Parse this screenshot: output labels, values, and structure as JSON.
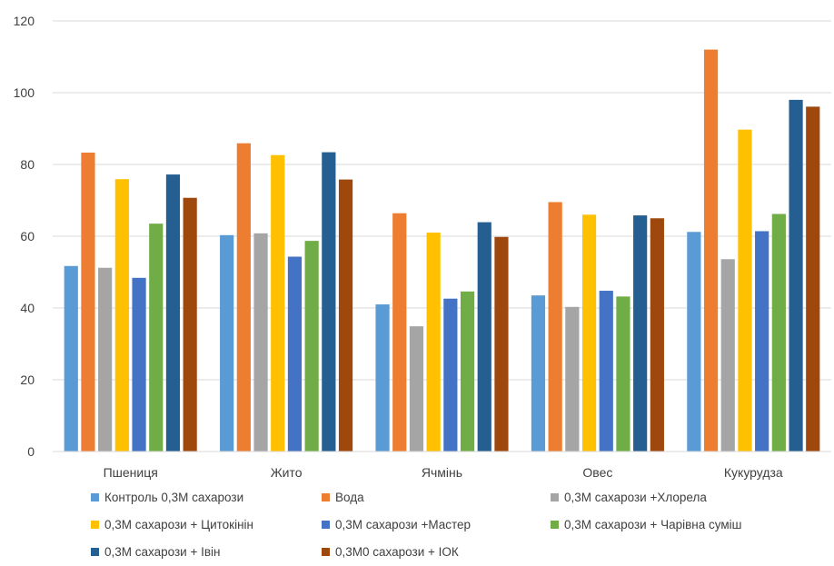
{
  "chart_data": {
    "type": "bar",
    "title": "",
    "xlabel": "",
    "ylabel": "",
    "ylim": [
      0,
      120
    ],
    "yticks": [
      0,
      20,
      40,
      60,
      80,
      100,
      120
    ],
    "grid": true,
    "legend_position": "bottom",
    "categories": [
      "Пшениця",
      "Жито",
      "Ячмінь",
      "Овес",
      "Кукурудза"
    ],
    "series": [
      {
        "name": "Контроль 0,3М сахарози",
        "color": "#5B9BD5",
        "values": [
          51.7,
          60.3,
          41.0,
          43.5,
          61.2
        ]
      },
      {
        "name": "Вода",
        "color": "#ED7D31",
        "values": [
          83.3,
          85.9,
          66.4,
          69.5,
          112.0
        ]
      },
      {
        "name": "0,3М сахарози +Хлорела",
        "color": "#A5A5A5",
        "values": [
          51.2,
          60.8,
          34.9,
          40.3,
          53.6
        ]
      },
      {
        "name": "0,3М сахарози + Цитокінін",
        "color": "#FFC000",
        "values": [
          75.9,
          82.6,
          61.0,
          66.0,
          89.7
        ]
      },
      {
        "name": "0,3М сахарози +Мастер",
        "color": "#4472C4",
        "values": [
          48.4,
          54.3,
          42.6,
          44.8,
          61.4
        ]
      },
      {
        "name": "0,3М сахарози + Чарівна суміш",
        "color": "#70AD47",
        "values": [
          63.5,
          58.7,
          44.6,
          43.2,
          66.2
        ]
      },
      {
        "name": "0,3М сахарози + Івін",
        "color": "#255E91",
        "values": [
          77.2,
          83.4,
          63.9,
          65.8,
          98.0
        ]
      },
      {
        "name": "0,3М0 сахарози + ІОК",
        "color": "#9E480E",
        "values": [
          70.7,
          75.8,
          59.8,
          65.0,
          96.1
        ]
      }
    ]
  }
}
